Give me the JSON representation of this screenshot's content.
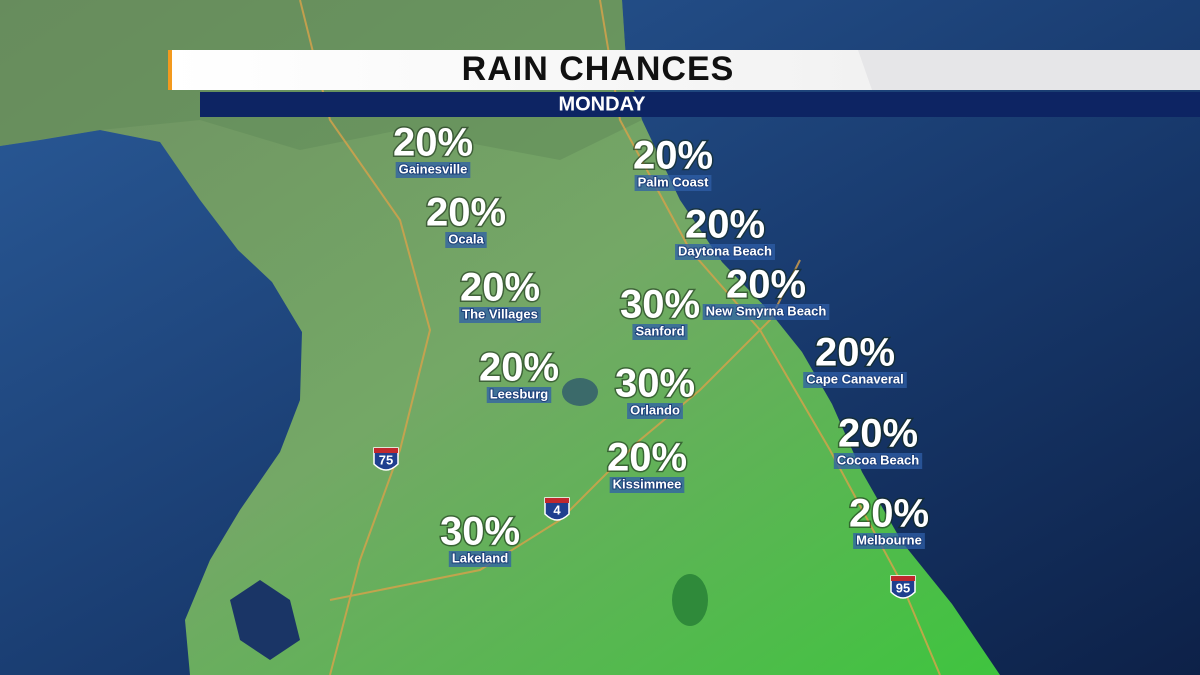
{
  "header": {
    "title": "RAIN CHANCES",
    "subtitle": "MONDAY"
  },
  "cities": [
    {
      "chance": "20%",
      "name": "Gainesville"
    },
    {
      "chance": "20%",
      "name": "Palm Coast"
    },
    {
      "chance": "20%",
      "name": "Ocala"
    },
    {
      "chance": "20%",
      "name": "Daytona Beach"
    },
    {
      "chance": "20%",
      "name": "The Villages"
    },
    {
      "chance": "20%",
      "name": "New Smyrna Beach"
    },
    {
      "chance": "30%",
      "name": "Sanford"
    },
    {
      "chance": "20%",
      "name": "Cape Canaveral"
    },
    {
      "chance": "20%",
      "name": "Leesburg"
    },
    {
      "chance": "30%",
      "name": "Orlando"
    },
    {
      "chance": "20%",
      "name": "Cocoa Beach"
    },
    {
      "chance": "20%",
      "name": "Kissimmee"
    },
    {
      "chance": "20%",
      "name": "Melbourne"
    },
    {
      "chance": "30%",
      "name": "Lakeland"
    }
  ],
  "highways": [
    {
      "label": "75"
    },
    {
      "label": "4"
    },
    {
      "label": "95"
    }
  ]
}
